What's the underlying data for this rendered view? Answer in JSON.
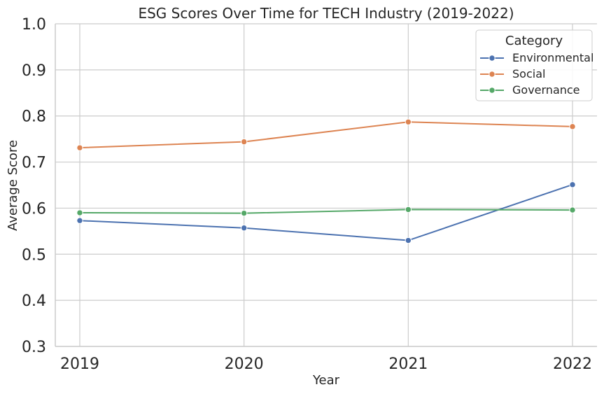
{
  "chart_data": {
    "type": "line",
    "title": "ESG Scores Over Time for TECH Industry (2019-2022)",
    "xlabel": "Year",
    "ylabel": "Average Score",
    "x": [
      "2019",
      "2020",
      "2021",
      "2022"
    ],
    "ylim": [
      0.3,
      1.0
    ],
    "yticks": [
      "0.3",
      "0.4",
      "0.5",
      "0.6",
      "0.7",
      "0.8",
      "0.9",
      "1.0"
    ],
    "grid": true,
    "legend": {
      "title": "Category",
      "position": "top-right"
    },
    "series": [
      {
        "name": "Environmental",
        "color": "#4c72b0",
        "values": [
          0.573,
          0.557,
          0.53,
          0.651
        ]
      },
      {
        "name": "Social",
        "color": "#dd8452",
        "values": [
          0.731,
          0.744,
          0.787,
          0.777
        ]
      },
      {
        "name": "Governance",
        "color": "#55a868",
        "values": [
          0.59,
          0.589,
          0.597,
          0.596
        ]
      }
    ]
  }
}
